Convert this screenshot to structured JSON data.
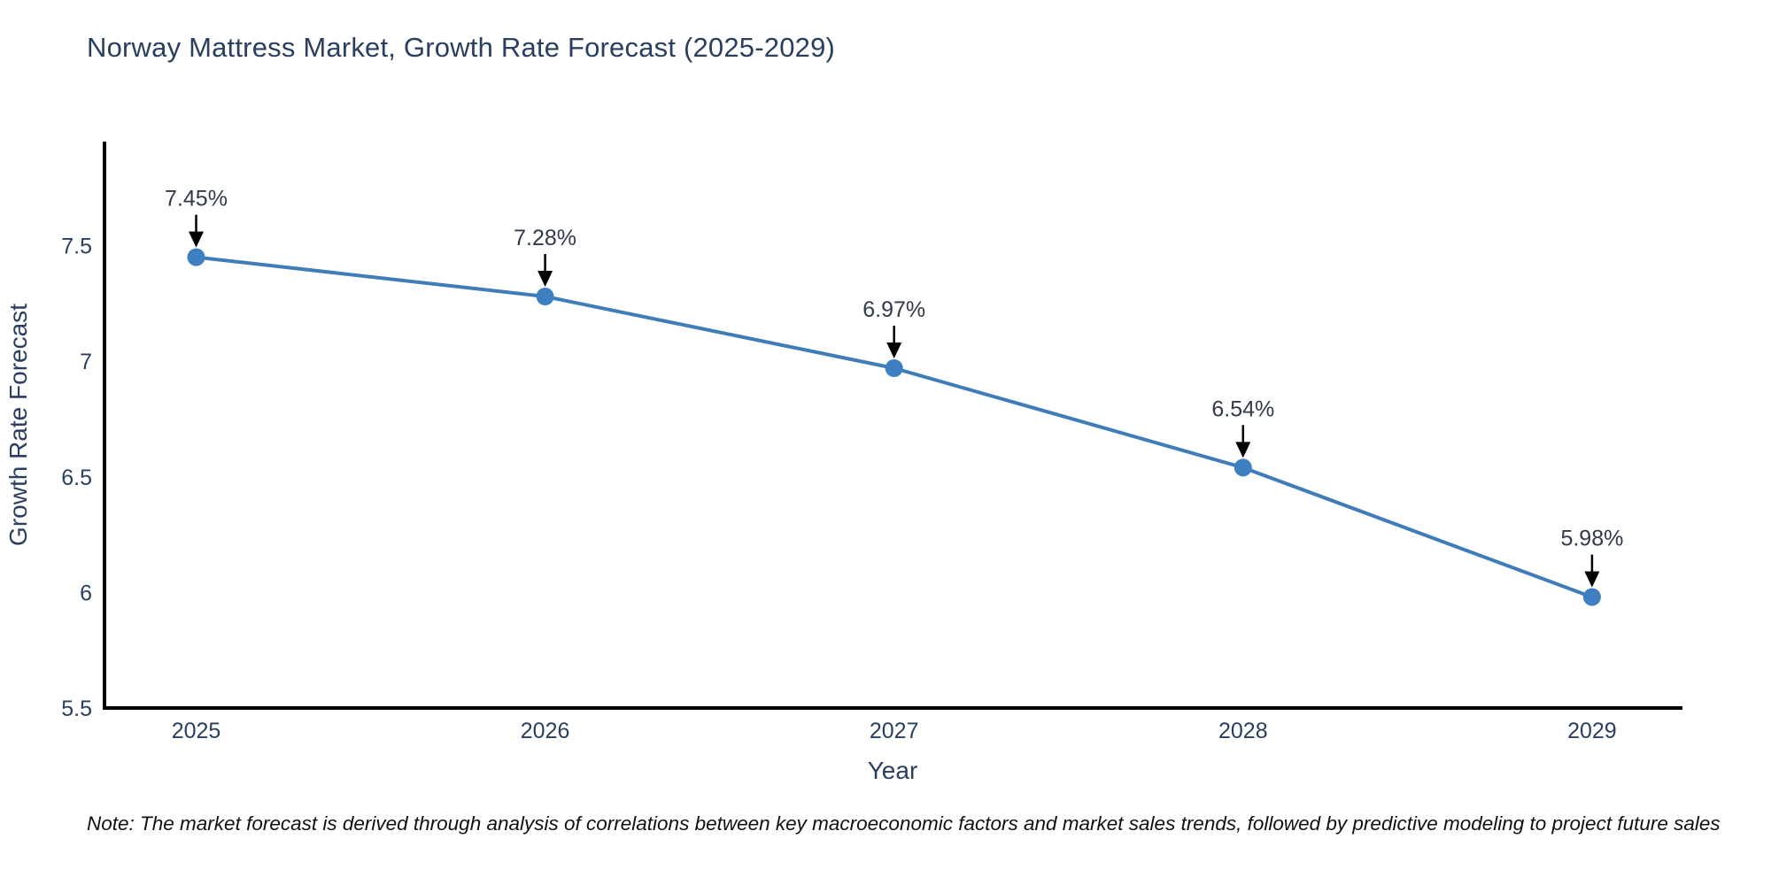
{
  "title": "Norway Mattress Market, Growth Rate Forecast (2025-2029)",
  "note": "Note: The market forecast is derived through analysis of correlations between key macroeconomic factors and market sales trends, followed by predictive modeling to project future sales",
  "chart_data": {
    "type": "line",
    "title": "Norway Mattress Market, Growth Rate Forecast (2025-2029)",
    "xlabel": "Year",
    "ylabel": "Growth Rate Forecast",
    "categories": [
      "2025",
      "2026",
      "2027",
      "2028",
      "2029"
    ],
    "values": [
      7.45,
      7.28,
      6.97,
      6.54,
      5.98
    ],
    "point_labels": [
      "7.45%",
      "7.28%",
      "6.97%",
      "6.54%",
      "5.98%"
    ],
    "yticks": [
      5.5,
      6,
      6.5,
      7,
      7.5
    ],
    "ylim": [
      5.5,
      7.95
    ],
    "grid": false,
    "legend_position": "none",
    "annotations": "black down-arrows from each percentage label to its data point",
    "colors": {
      "line": "#3f7cb8",
      "marker": "#3d7fc1",
      "axis_line": "#000000",
      "tick_text": "#2a3f5f",
      "annotation_text": "#303a4a",
      "annotation_arrow": "#000000",
      "title_text": "#2a3f5f"
    }
  }
}
